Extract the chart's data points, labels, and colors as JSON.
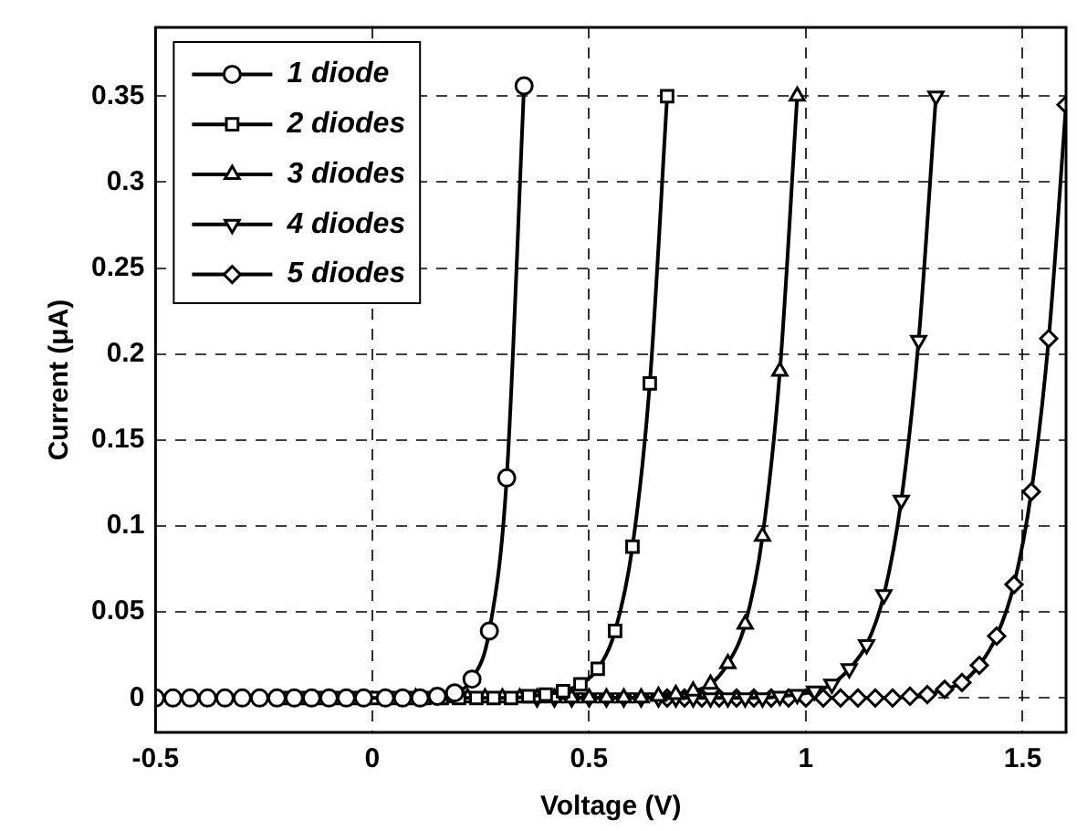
{
  "chart_data": {
    "type": "line",
    "xlabel": "Voltage (V)",
    "ylabel": "Current (μA)",
    "xlim": [
      -0.5,
      1.6
    ],
    "xticks": [
      -0.5,
      0,
      0.5,
      1,
      1.5
    ],
    "ylim": [
      -0.02,
      0.39
    ],
    "yticks": [
      0,
      0.05,
      0.1,
      0.15,
      0.2,
      0.25,
      0.3,
      0.35
    ],
    "grid": true,
    "legend": "top left",
    "line_style": "solid",
    "series": [
      {
        "name": "1 diode",
        "color": "#000000",
        "marker": "circle",
        "x": [
          -0.5,
          -0.46,
          -0.42,
          -0.38,
          -0.34,
          -0.3,
          -0.26,
          -0.22,
          -0.18,
          -0.14,
          -0.1,
          -0.06,
          -0.02,
          0.03,
          0.07,
          0.11,
          0.15,
          0.19,
          0.23,
          0.27,
          0.31,
          0.35
        ],
        "values": [
          0,
          0,
          0,
          0,
          0,
          0,
          0,
          0,
          0,
          0,
          0,
          0,
          0,
          0,
          0,
          0,
          0.001,
          0.003,
          0.011,
          0.039,
          0.128,
          0.356
        ]
      },
      {
        "name": "2 diodes",
        "color": "#000000",
        "marker": "square",
        "x": [
          -0.2,
          -0.16,
          -0.12,
          -0.08,
          -0.04,
          0,
          0.04,
          0.08,
          0.12,
          0.16,
          0.2,
          0.24,
          0.28,
          0.32,
          0.36,
          0.4,
          0.44,
          0.48,
          0.52,
          0.56,
          0.6,
          0.64,
          0.68
        ],
        "values": [
          0,
          0,
          0,
          0,
          0,
          0,
          0,
          0,
          0,
          0,
          0,
          0,
          0,
          0,
          0.001,
          0.002,
          0.004,
          0.008,
          0.017,
          0.039,
          0.088,
          0.183,
          0.35
        ]
      },
      {
        "name": "3 diodes",
        "color": "#000000",
        "marker": "triangle",
        "x": [
          0.1,
          0.14,
          0.18,
          0.22,
          0.26,
          0.3,
          0.34,
          0.38,
          0.42,
          0.46,
          0.5,
          0.54,
          0.58,
          0.62,
          0.66,
          0.7,
          0.74,
          0.78,
          0.82,
          0.86,
          0.9,
          0.94,
          0.98
        ],
        "values": [
          0,
          0,
          0,
          0,
          0,
          0,
          0,
          0,
          0,
          0,
          0,
          0,
          0,
          0,
          0.001,
          0.002,
          0.004,
          0.008,
          0.02,
          0.043,
          0.094,
          0.19,
          0.35
        ]
      },
      {
        "name": "4 diodes",
        "color": "#000000",
        "marker": "triangle_down",
        "x": [
          0.38,
          0.42,
          0.46,
          0.5,
          0.54,
          0.58,
          0.62,
          0.66,
          0.7,
          0.74,
          0.78,
          0.82,
          0.86,
          0.9,
          0.94,
          0.98,
          1.02,
          1.06,
          1.1,
          1.14,
          1.18,
          1.22,
          1.26,
          1.3
        ],
        "values": [
          0,
          0,
          0,
          0,
          0,
          0,
          0,
          0,
          0,
          0,
          0,
          0,
          0,
          0,
          0.001,
          0.002,
          0.004,
          0.008,
          0.017,
          0.031,
          0.06,
          0.115,
          0.208,
          0.35
        ]
      },
      {
        "name": "5 diodes",
        "color": "#000000",
        "marker": "diamond",
        "x": [
          0.68,
          0.72,
          0.76,
          0.8,
          0.84,
          0.88,
          0.92,
          0.96,
          1,
          1.04,
          1.08,
          1.12,
          1.16,
          1.2,
          1.24,
          1.28,
          1.32,
          1.36,
          1.4,
          1.44,
          1.48,
          1.52,
          1.56,
          1.6
        ],
        "values": [
          0,
          0,
          0,
          0,
          0,
          0,
          0,
          0,
          0,
          0,
          0,
          0,
          0,
          0,
          0.001,
          0.002,
          0.005,
          0.009,
          0.019,
          0.036,
          0.066,
          0.12,
          0.209,
          0.345
        ]
      }
    ]
  }
}
